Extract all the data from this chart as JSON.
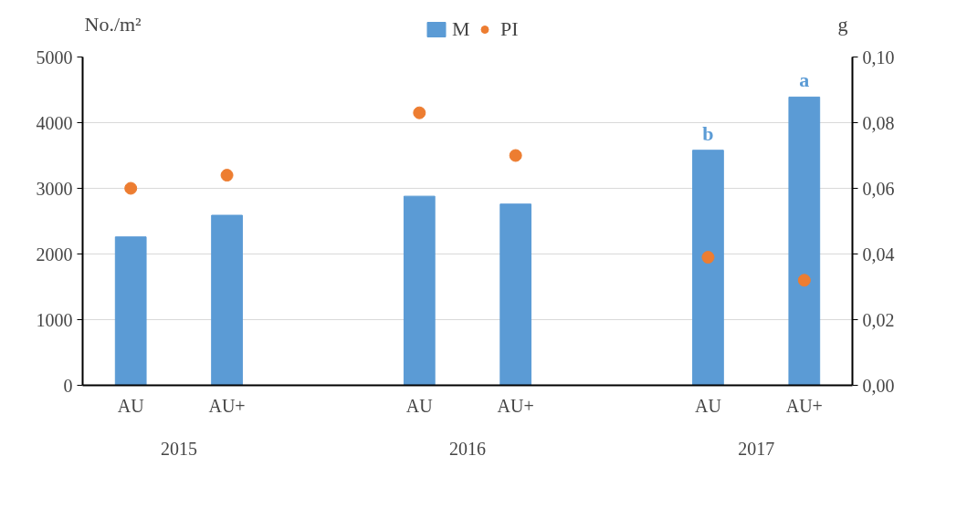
{
  "chart_data": {
    "type": "bar",
    "categories": [
      "AU",
      "AU+",
      null,
      "AU",
      "AU+",
      null,
      "AU",
      "AU+"
    ],
    "series": [
      {
        "name": "M",
        "color": "#5b9bd5",
        "values": [
          2260,
          2590,
          null,
          2880,
          2760,
          null,
          3580,
          4390
        ],
        "value_labels": [
          null,
          null,
          null,
          null,
          null,
          null,
          "b",
          "a"
        ]
      },
      {
        "name": "PI",
        "type": "scatter",
        "axis": "y2",
        "color": "#ed7d31",
        "values": [
          0.06,
          0.064,
          null,
          0.083,
          0.07,
          null,
          0.039,
          0.032
        ]
      }
    ],
    "ylabel": "No./m²",
    "y2label": "g",
    "ylim": [
      0,
      5000
    ],
    "yticks": [
      0,
      1000,
      2000,
      3000,
      4000,
      5000
    ],
    "y2lim": [
      0,
      0.1
    ],
    "y2ticks": [
      {
        "value": 0,
        "label": "0,00"
      },
      {
        "value": 0.02,
        "label": "0,02"
      },
      {
        "value": 0.04,
        "label": "0,04"
      },
      {
        "value": 0.06,
        "label": "0,06"
      },
      {
        "value": 0.08,
        "label": "0,08"
      },
      {
        "value": 0.1,
        "label": "0,10"
      }
    ],
    "annotations": [
      "2015",
      "2016",
      "2017"
    ],
    "grid": "y",
    "legend": "top",
    "marker": "circle"
  }
}
